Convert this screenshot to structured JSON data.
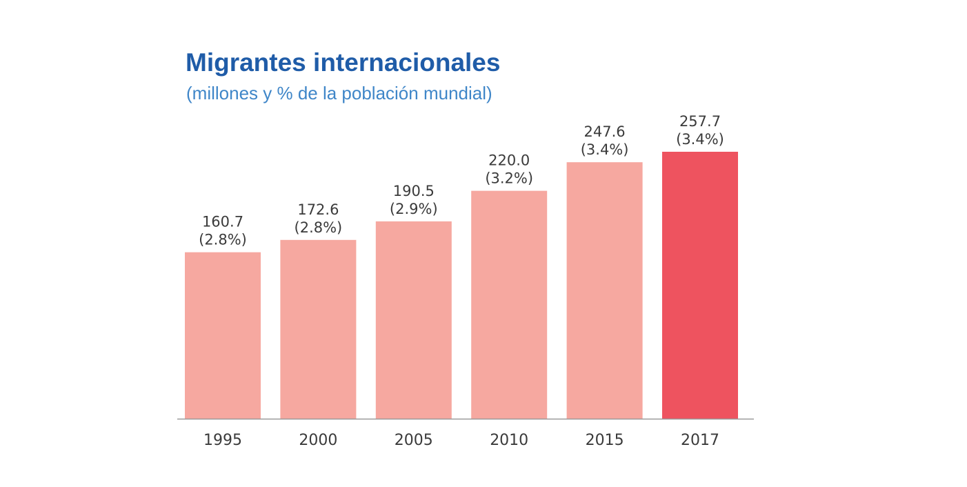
{
  "chart_data": {
    "type": "bar",
    "title": "Migrantes internacionales",
    "subtitle": "(millones y % de la población mundial)",
    "categories": [
      "1995",
      "2000",
      "2005",
      "2010",
      "2015",
      "2017"
    ],
    "values": [
      160.7,
      172.6,
      190.5,
      220.0,
      247.6,
      257.7
    ],
    "value_labels": [
      "160.7",
      "172.6",
      "190.5",
      "220.0",
      "247.6",
      "257.7"
    ],
    "percent_labels": [
      "(2.8%)",
      "(2.8%)",
      "(2.9%)",
      "(3.2%)",
      "(3.4%)",
      "(3.4%)"
    ],
    "highlight_index": 5,
    "colors": {
      "bar": "#f6a8a0",
      "highlight": "#ee535f",
      "axis": "#9a9a9a"
    },
    "ylim": [
      0,
      257.7
    ],
    "grid": false
  }
}
